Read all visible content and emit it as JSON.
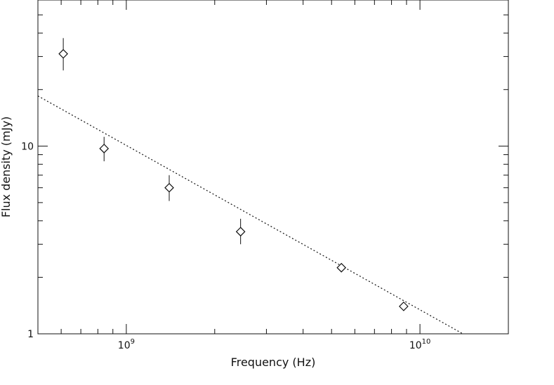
{
  "chart_data": {
    "type": "scatter",
    "title": "",
    "xlabel": "Frequency (Hz)",
    "ylabel": "Flux density (mJy)",
    "xscale": "log",
    "yscale": "log",
    "xlim": [
      500000000.0,
      20000000000.0
    ],
    "ylim": [
      1,
      60
    ],
    "grid": false,
    "x_tick_labels": [
      {
        "value": 1000000000.0,
        "base": "10",
        "exp": "9"
      },
      {
        "value": 10000000000.0,
        "base": "10",
        "exp": "10"
      }
    ],
    "y_tick_labels": [
      {
        "value": 1,
        "text": "1"
      },
      {
        "value": 10,
        "text": "10"
      }
    ],
    "series": [
      {
        "marker": "diamond",
        "points": [
          {
            "x": 610000000.0,
            "y": 31.0,
            "ylow": 25.3,
            "yhigh": 37.6
          },
          {
            "x": 840000000.0,
            "y": 9.7,
            "ylow": 8.3,
            "yhigh": 11.2
          },
          {
            "x": 1400000000.0,
            "y": 6.0,
            "ylow": 5.1,
            "yhigh": 7.0
          },
          {
            "x": 2450000000.0,
            "y": 3.5,
            "ylow": 3.0,
            "yhigh": 4.1
          },
          {
            "x": 5400000000.0,
            "y": 2.25,
            "ylow": 2.13,
            "yhigh": 2.37
          },
          {
            "x": 8800000000.0,
            "y": 1.4,
            "ylow": 1.33,
            "yhigh": 1.48
          }
        ]
      }
    ],
    "fit_line": {
      "style": "dotted",
      "points": [
        {
          "x": 500000000.0,
          "y": 18.5
        },
        {
          "x": 14000000000.0,
          "y": 1.0
        }
      ]
    }
  }
}
